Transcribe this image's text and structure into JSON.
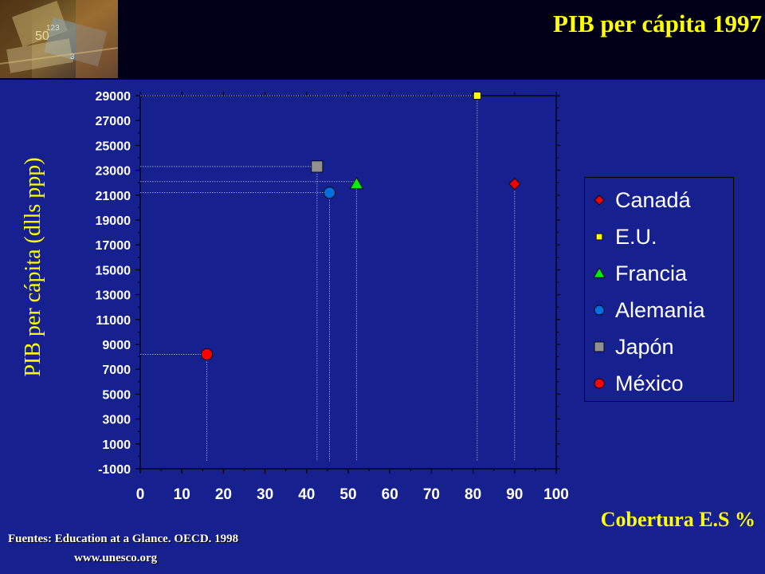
{
  "slide": {
    "title": "PIB per cápita 1997",
    "sources": "Fuentes: Education at a Glance. OECD. 1998",
    "url": "www.unesco.org"
  },
  "chart_data": {
    "type": "scatter",
    "title": "PIB per cápita 1997",
    "xlabel": "Cobertura E.S %",
    "ylabel": "PIB per cápita (dlls ppp)",
    "xlim": [
      0,
      100
    ],
    "ylim": [
      -1000,
      29000
    ],
    "x_ticks": [
      "0",
      "10",
      "20",
      "30",
      "40",
      "50",
      "60",
      "70",
      "80",
      "90",
      "100"
    ],
    "y_ticks": [
      "29000",
      "27000",
      "25000",
      "23000",
      "21000",
      "19000",
      "17000",
      "15000",
      "13000",
      "11000",
      "9000",
      "7000",
      "5000",
      "3000",
      "1000",
      "-1000"
    ],
    "grid": false,
    "legend_position": "right",
    "series": [
      {
        "name": "Canadá",
        "marker": "diamond",
        "color": "#ee0000",
        "x": 90,
        "y": 21900
      },
      {
        "name": "E.U.",
        "marker": "square",
        "color": "#ffff00",
        "x": 81,
        "y": 29000
      },
      {
        "name": "Francia",
        "marker": "triangle",
        "color": "#00ee00",
        "x": 52,
        "y": 21900
      },
      {
        "name": "Alemania",
        "marker": "circle",
        "color": "#0070e0",
        "x": 45.5,
        "y": 21200
      },
      {
        "name": "Japón",
        "marker": "square",
        "color": "#909090",
        "x": 42.5,
        "y": 23300
      },
      {
        "name": "México",
        "marker": "circle",
        "color": "#ff0000",
        "x": 16,
        "y": 8200
      }
    ]
  }
}
